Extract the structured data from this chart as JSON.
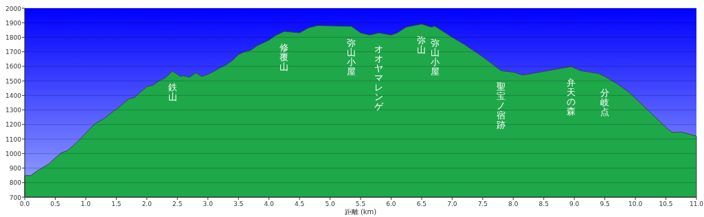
{
  "chart_data": {
    "type": "area",
    "xlabel": "距離 (km)",
    "color": "#1fa84a",
    "grid": "y",
    "x": [
      0,
      0.1,
      0.2,
      0.3,
      0.4,
      0.5,
      0.6,
      0.7,
      0.85,
      1.0,
      1.15,
      1.3,
      1.45,
      1.55,
      1.7,
      1.8,
      1.85,
      2.0,
      2.1,
      2.2,
      2.3,
      2.42,
      2.55,
      2.6,
      2.7,
      2.8,
      2.9,
      3.0,
      3.1,
      3.2,
      3.3,
      3.4,
      3.5,
      3.6,
      3.7,
      3.8,
      4.0,
      4.1,
      4.25,
      4.5,
      4.65,
      4.8,
      5.0,
      5.35,
      5.5,
      5.65,
      5.8,
      6.0,
      6.1,
      6.25,
      6.5,
      6.65,
      6.72,
      7.0,
      7.2,
      7.5,
      7.8,
      8.0,
      8.15,
      8.3,
      8.5,
      8.7,
      8.95,
      9.1,
      9.4,
      9.5,
      9.7,
      9.9,
      10.2,
      10.5,
      10.6,
      10.75,
      11.0
    ],
    "values": [
      850,
      848,
      880,
      905,
      930,
      970,
      1005,
      1020,
      1075,
      1140,
      1205,
      1240,
      1290,
      1320,
      1375,
      1385,
      1405,
      1460,
      1470,
      1500,
      1520,
      1567,
      1530,
      1535,
      1525,
      1555,
      1530,
      1545,
      1565,
      1590,
      1610,
      1640,
      1680,
      1700,
      1710,
      1740,
      1780,
      1810,
      1840,
      1830,
      1865,
      1880,
      1878,
      1875,
      1830,
      1815,
      1830,
      1815,
      1830,
      1870,
      1890,
      1870,
      1875,
      1800,
      1750,
      1665,
      1570,
      1560,
      1540,
      1550,
      1565,
      1580,
      1598,
      1570,
      1550,
      1530,
      1480,
      1420,
      1300,
      1180,
      1145,
      1148,
      1120
    ],
    "xlim": [
      0,
      11
    ],
    "xticks": [
      {
        "value": 0,
        "label": "0.0"
      },
      {
        "value": 0.5,
        "label": "0.5"
      },
      {
        "value": 1,
        "label": "1.0"
      },
      {
        "value": 1.5,
        "label": "1.5"
      },
      {
        "value": 2,
        "label": "2.0"
      },
      {
        "value": 2.5,
        "label": "2.5"
      },
      {
        "value": 3,
        "label": "3.0"
      },
      {
        "value": 3.5,
        "label": "3.5"
      },
      {
        "value": 4,
        "label": "4.0"
      },
      {
        "value": 4.5,
        "label": "4.5"
      },
      {
        "value": 5,
        "label": "5.0"
      },
      {
        "value": 5.5,
        "label": "5.5"
      },
      {
        "value": 6,
        "label": "6.0"
      },
      {
        "value": 6.5,
        "label": "6.5"
      },
      {
        "value": 7,
        "label": "7.0"
      },
      {
        "value": 7.5,
        "label": "7.5"
      },
      {
        "value": 8,
        "label": "8.0"
      },
      {
        "value": 8.5,
        "label": "8.5"
      },
      {
        "value": 9,
        "label": "9.0"
      },
      {
        "value": 9.5,
        "label": "9.5"
      },
      {
        "value": 10,
        "label": "10.0"
      },
      {
        "value": 10.5,
        "label": "10.5"
      },
      {
        "value": 11,
        "label": "11.0"
      }
    ],
    "ylim": [
      700,
      2000
    ],
    "yticks": [
      700,
      800,
      900,
      1000,
      1100,
      1200,
      1300,
      1400,
      1500,
      1600,
      1700,
      1800,
      1900,
      2000
    ],
    "annotations": [
      {
        "text": "鉄山",
        "x": 2.42,
        "y": 1567
      },
      {
        "text": "修覆山",
        "x": 4.25,
        "y": 1840
      },
      {
        "text": "弥山小屋",
        "x": 5.35,
        "y": 1875
      },
      {
        "text": "オオヤマレンゲ",
        "x": 5.8,
        "y": 1830
      },
      {
        "text": "弥山",
        "x": 6.5,
        "y": 1890
      },
      {
        "text": "弥山小屋",
        "x": 6.72,
        "y": 1875
      },
      {
        "text": "聖宝ノ宿跡",
        "x": 7.8,
        "y": 1570
      },
      {
        "text": "弁天の森",
        "x": 8.95,
        "y": 1598
      },
      {
        "text": "分岐点",
        "x": 9.5,
        "y": 1530
      }
    ]
  }
}
